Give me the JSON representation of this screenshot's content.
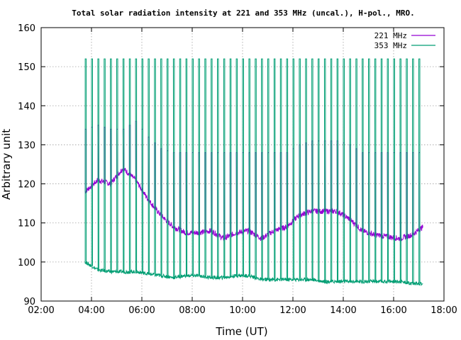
{
  "chart_data": {
    "type": "line",
    "title": "Total solar radiation intensity at 221 and 353 MHz (uncal.), H-pol., MRO.",
    "xlabel": "Time (UT)",
    "ylabel": "Arbitrary unit",
    "xlim": [
      "02:00",
      "18:00"
    ],
    "ylim": [
      90,
      160
    ],
    "x_ticks": [
      "02:00",
      "04:00",
      "06:00",
      "08:00",
      "10:00",
      "12:00",
      "14:00",
      "16:00",
      "18:00"
    ],
    "y_ticks": [
      90,
      100,
      110,
      120,
      130,
      140,
      150,
      160
    ],
    "grid": true,
    "legend_position": "top-right",
    "calibration_spike_every_minutes": 15,
    "series": [
      {
        "name": "221 MHz",
        "color": "#9400d3",
        "x": [
          "03:45",
          "04:15",
          "04:45",
          "05:15",
          "05:45",
          "06:15",
          "06:45",
          "07:15",
          "07:45",
          "08:15",
          "08:45",
          "09:15",
          "09:45",
          "10:15",
          "10:45",
          "11:15",
          "11:45",
          "12:15",
          "12:45",
          "13:15",
          "13:45",
          "14:15",
          "14:45",
          "15:15",
          "15:45",
          "16:15",
          "16:45",
          "17:10"
        ],
        "y": [
          118,
          121,
          120,
          124,
          121,
          116,
          112,
          109,
          107.5,
          107.5,
          108,
          106,
          107.5,
          108,
          106,
          108,
          109,
          112,
          113,
          113,
          113,
          111,
          108,
          107,
          106.5,
          106,
          107,
          109
        ],
        "spike_peak_values": [
          134,
          135,
          134,
          134,
          136,
          132,
          129,
          128,
          128,
          128,
          128,
          128,
          128,
          128,
          128,
          128,
          128,
          130,
          131,
          131,
          131,
          130,
          128,
          128,
          128,
          128,
          128,
          128
        ]
      },
      {
        "name": "353 MHz",
        "color": "#009e73",
        "x": [
          "03:45",
          "04:15",
          "04:45",
          "05:15",
          "05:45",
          "06:15",
          "06:45",
          "07:15",
          "07:45",
          "08:15",
          "08:45",
          "09:15",
          "09:45",
          "10:15",
          "10:45",
          "11:15",
          "11:45",
          "12:15",
          "12:45",
          "13:15",
          "13:45",
          "14:15",
          "14:45",
          "15:15",
          "15:45",
          "16:15",
          "16:45",
          "17:10"
        ],
        "y": [
          100,
          98,
          97.5,
          97.5,
          97.5,
          97,
          96.5,
          96,
          96.5,
          96.5,
          96,
          96,
          96.5,
          96.5,
          95.5,
          95.5,
          95.5,
          95.5,
          95.5,
          95,
          95,
          95,
          95,
          95,
          95,
          95,
          94.5,
          94.5
        ],
        "spike_peak_value": 152
      }
    ]
  }
}
